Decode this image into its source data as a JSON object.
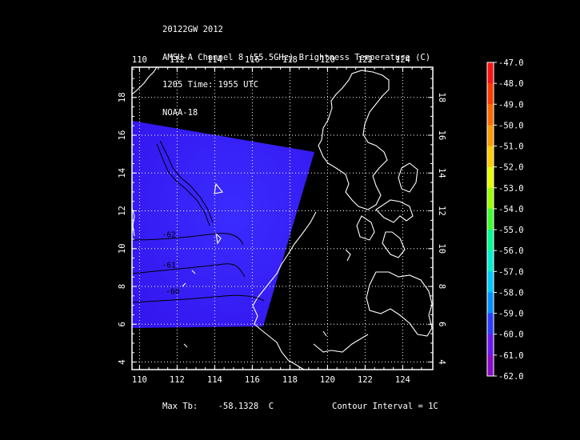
{
  "header": {
    "line1": "20122GW 2012",
    "line2": "AMSU-A Channel 8 (55.5GHz) Brightness Temperature (C)",
    "line3": "1205 Time: 1955 UTC",
    "line4": "NOAA-18"
  },
  "map": {
    "lon_ticks": [
      "110",
      "112",
      "114",
      "116",
      "118",
      "120",
      "122",
      "124"
    ],
    "lat_ticks": [
      "4",
      "6",
      "8",
      "10",
      "12",
      "14",
      "16",
      "18"
    ],
    "swath_color": "#3318f5",
    "contour_labels": [
      {
        "text": "-62",
        "lon": 111.2,
        "lat": 10.6
      },
      {
        "text": "-61",
        "lon": 111.2,
        "lat": 9.0
      },
      {
        "text": "-60",
        "lon": 111.4,
        "lat": 7.6
      }
    ]
  },
  "colorbar": {
    "labels": [
      "-47.0",
      "-48.0",
      "-49.0",
      "-50.0",
      "-51.0",
      "-52.0",
      "-53.0",
      "-54.0",
      "-55.0",
      "-56.0",
      "-57.0",
      "-58.0",
      "-59.0",
      "-60.0",
      "-61.0",
      "-62.0"
    ]
  },
  "footer": {
    "max_tb_label": "Max Tb:",
    "max_tb_value": "-58.1328",
    "max_tb_unit": "C",
    "contour_interval": "Contour Interval = 1C"
  }
}
